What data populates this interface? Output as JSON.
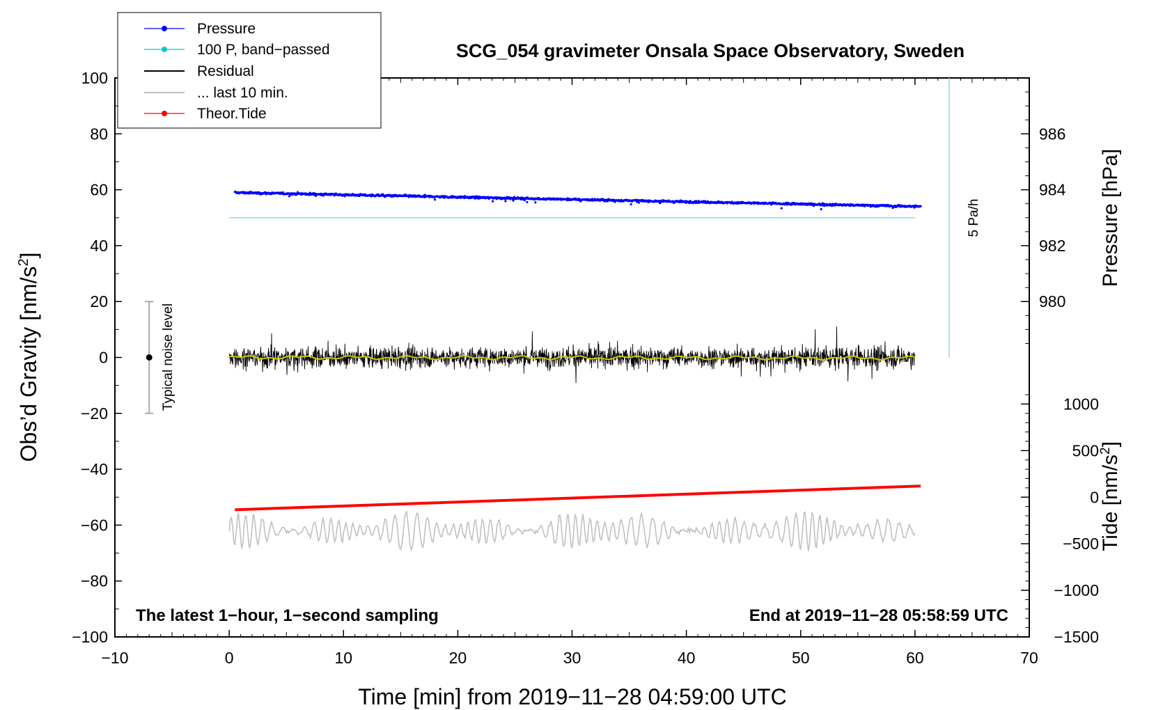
{
  "chart_data": {
    "type": "line",
    "title": "SCG_054 gravimeter Onsala Space Observatory, Sweden",
    "xlabel": "Time [min] from 2019−11−28 04:59:00 UTC",
    "ylabel_left": "Obs’d Gravity [nm/s",
    "ylabel_left_sup": "2",
    "ylabel_left_end": "]",
    "ylabel_pressure": "Pressure [hPa]",
    "ylabel_tide": "Tide [nm/s",
    "ylabel_tide_sup": "2",
    "ylabel_tide_end": "]",
    "xlim": [
      -10,
      70
    ],
    "ylim_left": [
      -100,
      100
    ],
    "x_ticks": [
      -10,
      0,
      10,
      20,
      30,
      40,
      50,
      60,
      70
    ],
    "x_tick_labels": [
      "−10",
      "0",
      "10",
      "20",
      "30",
      "40",
      "50",
      "60",
      "70"
    ],
    "y_ticks_left": [
      -100,
      -80,
      -60,
      -40,
      -20,
      0,
      20,
      40,
      60,
      80,
      100
    ],
    "y_tick_labels_left": [
      "−100",
      "−80",
      "−60",
      "−40",
      "−20",
      "0",
      "20",
      "40",
      "60",
      "80",
      "100"
    ],
    "pressure_ticks": [
      980,
      982,
      984,
      986
    ],
    "pressure_tick_labels": [
      "980",
      "982",
      "984",
      "986"
    ],
    "tide_ticks": [
      -1500,
      -1000,
      -500,
      0,
      500,
      1000
    ],
    "tide_tick_labels": [
      "−1500",
      "−1000",
      "−500",
      "0",
      "500",
      "1000"
    ],
    "pressure_axis_map": {
      "hPa_at_gravity_0": 978,
      "hPa_per_gravity_unit": 0.1
    },
    "tide_axis_map": {
      "tide_at_gravity_minus50": 0,
      "tide_per_gravity_unit": 30
    },
    "legend": [
      {
        "label": "Pressure",
        "color": "#0000ff",
        "marker": "dot"
      },
      {
        "label": "100 P, band−passed",
        "color": "#00cccc",
        "marker": "dot"
      },
      {
        "label": "Residual",
        "color": "#000000",
        "marker": "none"
      },
      {
        "label": "... last 10 min.",
        "color": "#c0c0c0",
        "marker": "none"
      },
      {
        "label": "Theor.Tide",
        "color": "#ff0000",
        "marker": "dot"
      }
    ],
    "series": [
      {
        "name": "Pressure",
        "color": "#0000ff",
        "axis": "pressure",
        "x_range": [
          0.5,
          60.5
        ],
        "start_hPa": 983.9,
        "end_hPa": 983.4
      },
      {
        "name": "100 P, band−passed",
        "color": "#00cccc",
        "axis": "gravity",
        "x_range": [
          0,
          60
        ],
        "level": 50
      },
      {
        "name": "Residual",
        "color": "#000000",
        "axis": "gravity",
        "x_range": [
          0,
          60
        ],
        "mean": 0,
        "typical_range": [
          -8,
          8
        ]
      },
      {
        "name": "Residual smoothed",
        "color": "#cccc00",
        "axis": "gravity",
        "x_range": [
          0,
          60
        ],
        "mean": 0
      },
      {
        "name": "... last 10 min.",
        "color": "#c0c0c0",
        "axis": "gravity",
        "x_range": [
          0,
          60
        ],
        "center": -62
      },
      {
        "name": "Theor.Tide",
        "color": "#ff0000",
        "axis": "tide",
        "x_range": [
          0.5,
          60.5
        ],
        "start_nm_s2": -135,
        "end_nm_s2": 120
      }
    ],
    "rate_bar": {
      "label": "5 Pa/h",
      "x": 63,
      "y_range": [
        0,
        100
      ],
      "color": "#80e0e0"
    },
    "noise_bar": {
      "label": "Typical noise level",
      "x": -7,
      "center": 0,
      "range": [
        -20,
        20
      ]
    },
    "note_left": "The latest 1−hour, 1−second sampling",
    "note_right": "End at 2019−11−28 05:58:59 UTC"
  }
}
